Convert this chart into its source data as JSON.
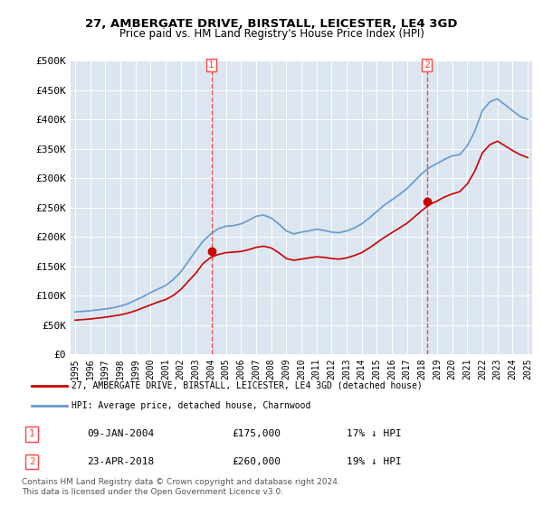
{
  "title": "27, AMBERGATE DRIVE, BIRSTALL, LEICESTER, LE4 3GD",
  "subtitle": "Price paid vs. HM Land Registry's House Price Index (HPI)",
  "legend_line1": "27, AMBERGATE DRIVE, BIRSTALL, LEICESTER, LE4 3GD (detached house)",
  "legend_line2": "HPI: Average price, detached house, Charnwood",
  "annotation1_label": "1",
  "annotation1_date": "09-JAN-2004",
  "annotation1_price": "£175,000",
  "annotation1_hpi": "17% ↓ HPI",
  "annotation2_label": "2",
  "annotation2_date": "23-APR-2018",
  "annotation2_price": "£260,000",
  "annotation2_hpi": "19% ↓ HPI",
  "footnote1": "Contains HM Land Registry data © Crown copyright and database right 2024.",
  "footnote2": "This data is licensed under the Open Government Licence v3.0.",
  "red_line_color": "#cc0000",
  "blue_line_color": "#6699cc",
  "vline_color": "#ff4444",
  "marker_color_red": "#cc0000",
  "marker_color_blue": "#6699cc",
  "background_chart": "#dce6f0",
  "ylim": [
    0,
    500000
  ],
  "yticks": [
    0,
    50000,
    100000,
    150000,
    200000,
    250000,
    300000,
    350000,
    400000,
    450000,
    500000
  ],
  "ytick_labels": [
    "£0",
    "£50K",
    "£100K",
    "£150K",
    "£200K",
    "£250K",
    "£300K",
    "£350K",
    "£400K",
    "£450K",
    "£500K"
  ],
  "xtick_years": [
    1995,
    1996,
    1997,
    1998,
    1999,
    2000,
    2001,
    2002,
    2003,
    2004,
    2005,
    2006,
    2007,
    2008,
    2009,
    2010,
    2011,
    2012,
    2013,
    2014,
    2015,
    2016,
    2017,
    2018,
    2019,
    2020,
    2021,
    2022,
    2023,
    2024,
    2025
  ],
  "sale1_x": 2004.03,
  "sale1_y": 175000,
  "sale2_x": 2018.31,
  "sale2_y": 260000,
  "hpi_x": [
    1995,
    1995.5,
    1996,
    1996.5,
    1997,
    1997.5,
    1998,
    1998.5,
    1999,
    1999.5,
    2000,
    2000.5,
    2001,
    2001.5,
    2002,
    2002.5,
    2003,
    2003.5,
    2004,
    2004.5,
    2005,
    2005.5,
    2006,
    2006.5,
    2007,
    2007.5,
    2008,
    2008.5,
    2009,
    2009.5,
    2010,
    2010.5,
    2011,
    2011.5,
    2012,
    2012.5,
    2013,
    2013.5,
    2014,
    2014.5,
    2015,
    2015.5,
    2016,
    2016.5,
    2017,
    2017.5,
    2018,
    2018.5,
    2019,
    2019.5,
    2020,
    2020.5,
    2021,
    2021.5,
    2022,
    2022.5,
    2023,
    2023.5,
    2024,
    2024.5,
    2025
  ],
  "hpi_y": [
    72000,
    73000,
    74000,
    75500,
    77000,
    79000,
    82000,
    86000,
    92000,
    98000,
    105000,
    111000,
    117000,
    127000,
    140000,
    158000,
    176000,
    193000,
    205000,
    214000,
    218000,
    219000,
    222000,
    228000,
    235000,
    237000,
    232000,
    222000,
    210000,
    205000,
    208000,
    210000,
    213000,
    211000,
    208000,
    207000,
    210000,
    215000,
    222000,
    232000,
    243000,
    254000,
    263000,
    272000,
    282000,
    295000,
    308000,
    318000,
    325000,
    332000,
    338000,
    340000,
    355000,
    380000,
    415000,
    430000,
    435000,
    425000,
    415000,
    405000,
    400000
  ],
  "red_x": [
    1995,
    1995.5,
    1996,
    1996.5,
    1997,
    1997.5,
    1998,
    1998.5,
    1999,
    1999.5,
    2000,
    2000.5,
    2001,
    2001.5,
    2002,
    2002.5,
    2003,
    2003.5,
    2004,
    2004.5,
    2005,
    2005.5,
    2006,
    2006.5,
    2007,
    2007.5,
    2008,
    2008.5,
    2009,
    2009.5,
    2010,
    2010.5,
    2011,
    2011.5,
    2012,
    2012.5,
    2013,
    2013.5,
    2014,
    2014.5,
    2015,
    2015.5,
    2016,
    2016.5,
    2017,
    2017.5,
    2018,
    2018.5,
    2019,
    2019.5,
    2020,
    2020.5,
    2021,
    2021.5,
    2022,
    2022.5,
    2023,
    2023.5,
    2024,
    2024.5,
    2025
  ],
  "red_y": [
    58000,
    59000,
    60000,
    61500,
    63000,
    65000,
    67000,
    70000,
    74000,
    79000,
    84000,
    89000,
    93000,
    100000,
    110000,
    124000,
    138000,
    155000,
    165000,
    170000,
    173000,
    174000,
    175000,
    178000,
    182000,
    184000,
    181000,
    173000,
    163000,
    160000,
    162000,
    164000,
    166000,
    165000,
    163000,
    162000,
    164000,
    168000,
    173000,
    181000,
    190000,
    199000,
    207000,
    215000,
    223000,
    234000,
    245000,
    255000,
    261000,
    268000,
    273000,
    277000,
    290000,
    312000,
    343000,
    357000,
    363000,
    355000,
    347000,
    340000,
    335000
  ]
}
